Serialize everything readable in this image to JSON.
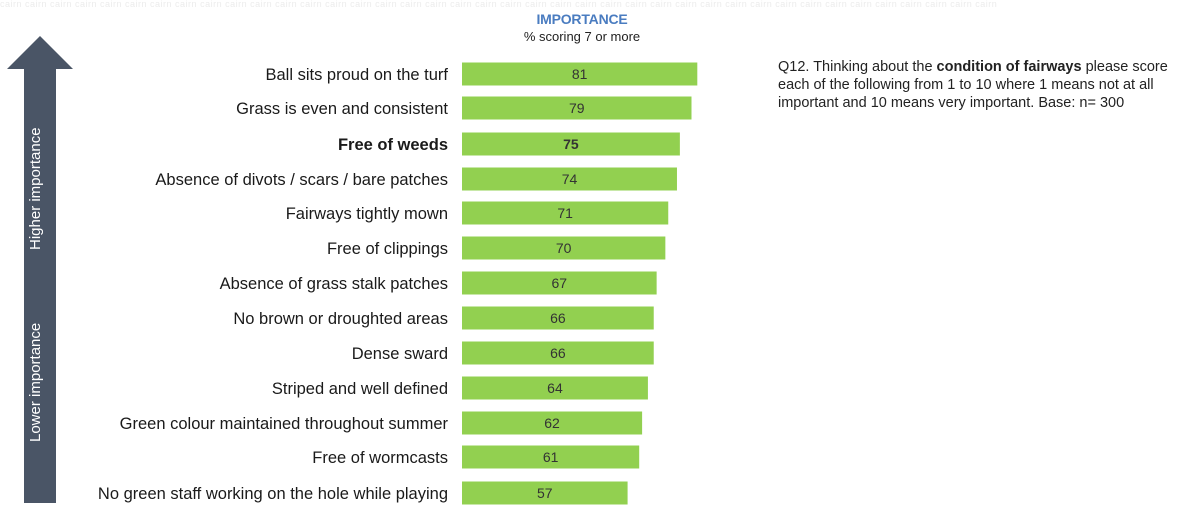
{
  "header": {
    "title": "IMPORTANCE",
    "subtitle": "% scoring 7 or more"
  },
  "arrow": {
    "higher_label": "Higher importance",
    "lower_label": "Lower importance",
    "color": "#4a5566"
  },
  "question": {
    "prefix": "Q12. Thinking about the ",
    "emphasis": "condition of fairways",
    "suffix": " please score each of the following from 1 to 10 where 1 means not at all important and 10 means very important. Base: n= 300"
  },
  "chart_data": {
    "type": "bar",
    "orientation": "horizontal",
    "bar_color": "#92d050",
    "highlighted_category": "Free of weeds",
    "categories": [
      "Ball sits proud on the turf",
      "Grass is even and consistent",
      "Free of weeds",
      "Absence of divots / scars / bare patches",
      "Fairways tightly mown",
      "Free of clippings",
      "Absence of grass stalk patches",
      "No brown or droughted areas",
      "Dense sward",
      "Striped and well defined",
      "Green colour maintained throughout summer",
      "Free of wormcasts",
      "No green staff working on the hole while playing"
    ],
    "values": [
      81,
      79,
      75,
      74,
      71,
      70,
      67,
      66,
      66,
      64,
      62,
      61,
      57
    ],
    "xlim": [
      0,
      100
    ]
  }
}
